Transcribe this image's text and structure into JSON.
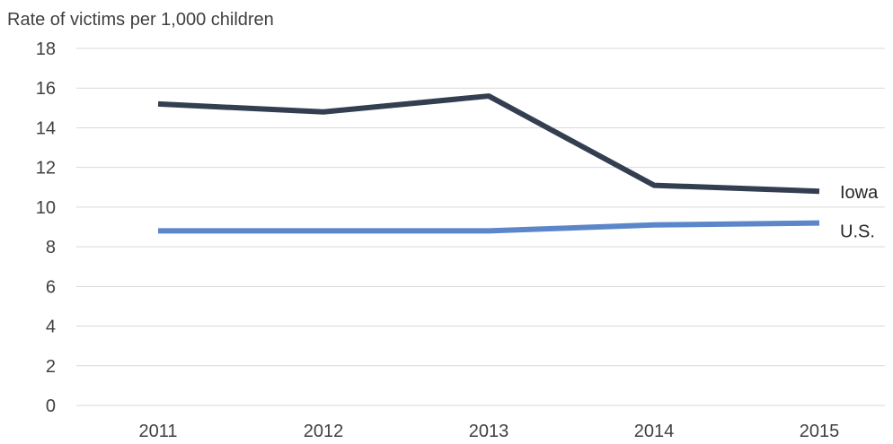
{
  "chart_data": {
    "type": "line",
    "title": "",
    "ylabel": "Rate of victims per 1,000 children",
    "xlabel": "",
    "categories": [
      "2011",
      "2012",
      "2013",
      "2014",
      "2015"
    ],
    "ylim": [
      0,
      18
    ],
    "yticks": [
      0,
      2,
      4,
      6,
      8,
      10,
      12,
      14,
      16,
      18
    ],
    "grid": true,
    "legend": "direct labels at right end of lines",
    "series": [
      {
        "name": "Iowa",
        "values": [
          15.2,
          14.8,
          15.6,
          11.1,
          10.8
        ],
        "color": "#333f50"
      },
      {
        "name": "U.S.",
        "values": [
          8.8,
          8.8,
          8.8,
          9.1,
          9.2
        ],
        "color": "#5b86c9"
      }
    ],
    "gridline_color": "#d9d9d9"
  }
}
